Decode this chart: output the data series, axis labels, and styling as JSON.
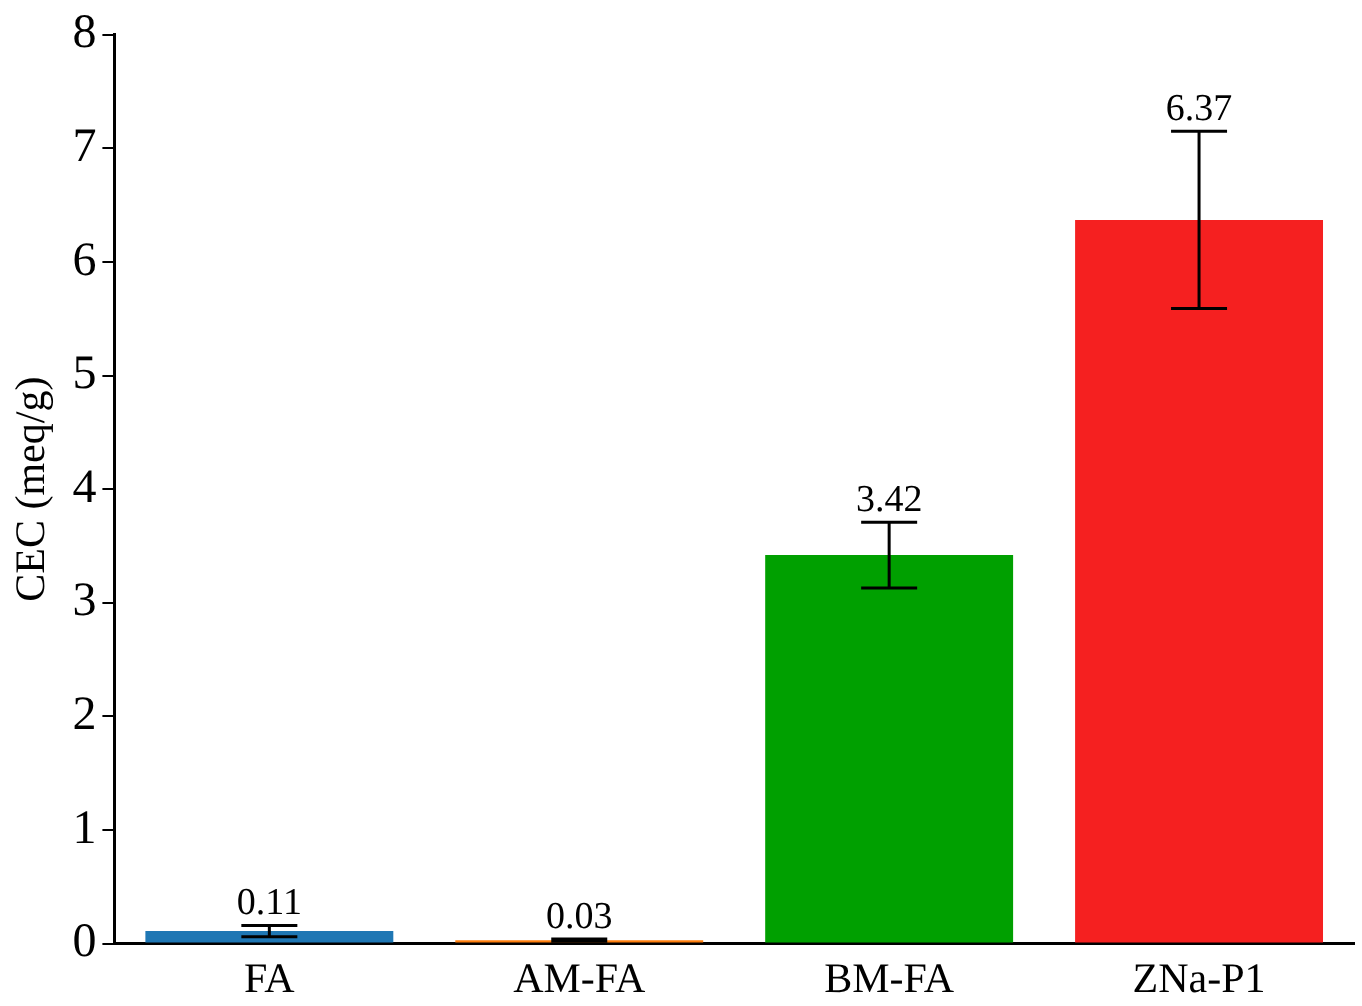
{
  "chart_data": {
    "type": "bar",
    "ylabel": "CEC (meq/g)",
    "categories": [
      "FA",
      "AM-FA",
      "BM-FA",
      "ZNa-P1"
    ],
    "values": [
      0.11,
      0.03,
      3.42,
      6.37
    ],
    "colors": [
      "#1f77b4",
      "#ff7f0e",
      "#00a000",
      "#f52020"
    ],
    "errors": [
      0.05,
      0.01,
      0.29,
      0.78
    ],
    "ylim": [
      0,
      8
    ],
    "yticks": [
      0,
      1,
      2,
      3,
      4,
      5,
      6,
      7,
      8
    ],
    "grid": false,
    "legend": false,
    "data_labels": true
  }
}
